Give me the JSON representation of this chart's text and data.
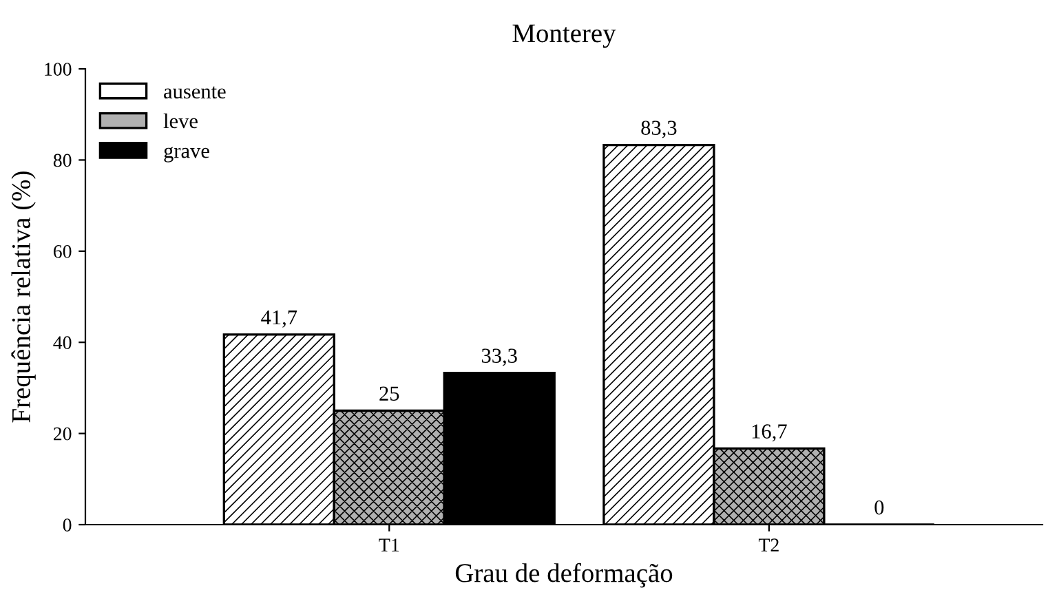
{
  "chart_data": {
    "type": "bar",
    "title": "Monterey",
    "xlabel": "Grau de deformação",
    "ylabel": "Frequência relativa (%)",
    "categories": [
      "T1",
      "T2"
    ],
    "series": [
      {
        "name": "ausente",
        "color": "#ffffff",
        "values": [
          41.7,
          83.3
        ],
        "value_labels": [
          "41,7",
          "83,3"
        ]
      },
      {
        "name": "leve",
        "color": "#b0b0b0",
        "values": [
          25,
          16.7
        ],
        "value_labels": [
          "25",
          "16,7"
        ]
      },
      {
        "name": "grave",
        "color": "#000000",
        "values": [
          33.3,
          0
        ],
        "value_labels": [
          "33,3",
          "0"
        ]
      }
    ],
    "ylim": [
      0,
      100
    ],
    "yticks": [
      0,
      20,
      40,
      60,
      80,
      100
    ],
    "grid": false,
    "legend": "top left"
  }
}
